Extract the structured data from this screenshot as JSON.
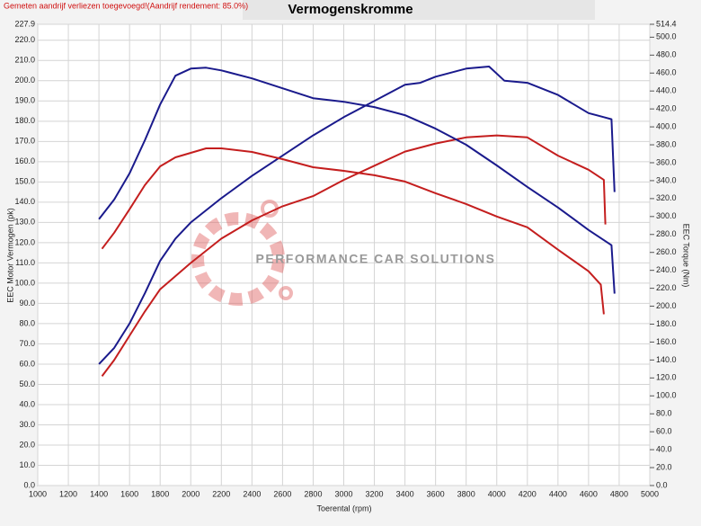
{
  "chart_data": {
    "type": "line",
    "title": "Vermogenskromme",
    "note": "Gemeten aandrijf verliezen toegevoegd!(Aandrijf rendement: 85.0%)",
    "watermark": "PERFORMANCE CAR SOLUTIONS",
    "x_label": "Toerental (rpm)",
    "y_label": "EEC Motor Vermogen (pk)",
    "y2_label": "EEC Torque (Nm)",
    "grid": true,
    "xlim": [
      1000,
      5000
    ],
    "xticks": [
      1000,
      1200,
      1400,
      1600,
      1800,
      2000,
      2200,
      2400,
      2600,
      2800,
      3000,
      3200,
      3400,
      3600,
      3800,
      4000,
      4200,
      4400,
      4600,
      4800,
      5000
    ],
    "ylim": [
      0,
      227.9
    ],
    "yticks": [
      {
        "value": 0,
        "label": "0.0"
      },
      {
        "value": 10,
        "label": "10.0"
      },
      {
        "value": 20,
        "label": "20.0"
      },
      {
        "value": 30,
        "label": "30.0"
      },
      {
        "value": 40,
        "label": "40.0"
      },
      {
        "value": 50,
        "label": "50.0"
      },
      {
        "value": 60,
        "label": "60.0"
      },
      {
        "value": 70,
        "label": "70.0"
      },
      {
        "value": 80,
        "label": "80.0"
      },
      {
        "value": 90,
        "label": "90.0"
      },
      {
        "value": 100,
        "label": "100.0"
      },
      {
        "value": 110,
        "label": "110.0"
      },
      {
        "value": 120,
        "label": "120.0"
      },
      {
        "value": 130,
        "label": "130.0"
      },
      {
        "value": 140,
        "label": "140.0"
      },
      {
        "value": 150,
        "label": "150.0"
      },
      {
        "value": 160,
        "label": "160.0"
      },
      {
        "value": 170,
        "label": "170.0"
      },
      {
        "value": 180,
        "label": "180.0"
      },
      {
        "value": 190,
        "label": "190.0"
      },
      {
        "value": 200,
        "label": "200.0"
      },
      {
        "value": 210,
        "label": "210.0"
      },
      {
        "value": 220,
        "label": "220.0"
      },
      227.9
    ],
    "y2lim": [
      0,
      514.4
    ],
    "y2ticks": [
      {
        "value": 0,
        "label": "0.0"
      },
      {
        "value": 20,
        "label": "20.0"
      },
      {
        "value": 40,
        "label": "40.0"
      },
      {
        "value": 60,
        "label": "60.0"
      },
      {
        "value": 80,
        "label": "80.0"
      },
      {
        "value": 100,
        "label": "100.0"
      },
      {
        "value": 120,
        "label": "120.0"
      },
      {
        "value": 140,
        "label": "140.0"
      },
      {
        "value": 160,
        "label": "160.0"
      },
      {
        "value": 180,
        "label": "180.0"
      },
      {
        "value": 200,
        "label": "200.0"
      },
      {
        "value": 220,
        "label": "220.0"
      },
      {
        "value": 240,
        "label": "240.0"
      },
      {
        "value": 260,
        "label": "260.0"
      },
      {
        "value": 280,
        "label": "280.0"
      },
      {
        "value": 300,
        "label": "300.0"
      },
      {
        "value": 320,
        "label": "320.0"
      },
      {
        "value": 340,
        "label": "340.0"
      },
      {
        "value": 360,
        "label": "360.0"
      },
      {
        "value": 380,
        "label": "380.0"
      },
      {
        "value": 400,
        "label": "400.0"
      },
      {
        "value": 420,
        "label": "420.0"
      },
      {
        "value": 440,
        "label": "440.0"
      },
      {
        "value": 460,
        "label": "460.0"
      },
      {
        "value": 480,
        "label": "480.0"
      },
      {
        "value": 500,
        "label": "500.0"
      },
      514.4
    ],
    "series": [
      {
        "color": "#1a1a8c",
        "x": [
          1400,
          1500,
          1600,
          1700,
          1800,
          1900,
          2000,
          2200,
          2400,
          2600,
          2800,
          3000,
          3200,
          3400,
          3500,
          3600,
          3800,
          3950,
          4050,
          4200,
          4400,
          4600,
          4700,
          4750,
          4770
        ],
        "values": [
          60,
          68,
          80,
          95,
          111,
          122,
          130,
          142,
          153,
          163,
          173,
          182,
          190,
          198,
          199,
          202,
          206,
          207,
          200,
          199,
          193,
          184,
          182,
          181,
          145
        ]
      },
      {
        "color": "#c41e1e",
        "x": [
          1420,
          1500,
          1600,
          1700,
          1800,
          2000,
          2200,
          2400,
          2600,
          2800,
          3000,
          3200,
          3400,
          3600,
          3800,
          4000,
          4200,
          4400,
          4600,
          4700,
          4710
        ],
        "values": [
          54,
          62,
          74,
          86,
          97,
          110,
          122,
          131,
          138,
          143,
          151,
          158,
          165,
          169,
          172,
          173,
          172,
          163,
          156,
          151,
          129
        ]
      },
      {
        "color": "#1a1a8c",
        "axis": "y2",
        "x": [
          1400,
          1500,
          1600,
          1700,
          1800,
          1900,
          2000,
          2100,
          2200,
          2400,
          2600,
          2800,
          3000,
          3200,
          3400,
          3600,
          3800,
          4000,
          4200,
          4400,
          4600,
          4750,
          4770
        ],
        "values": [
          297,
          319,
          348,
          385,
          425,
          457,
          465,
          466,
          463,
          454,
          443,
          432,
          428,
          422,
          413,
          398,
          380,
          357,
          333,
          310,
          285,
          268,
          214
        ]
      },
      {
        "color": "#c41e1e",
        "axis": "y2",
        "x": [
          1420,
          1500,
          1600,
          1700,
          1800,
          1900,
          2000,
          2100,
          2200,
          2400,
          2600,
          2800,
          3000,
          3200,
          3400,
          3600,
          3800,
          4000,
          4200,
          4400,
          4600,
          4680,
          4700
        ],
        "values": [
          264,
          282,
          308,
          335,
          356,
          366,
          371,
          376,
          376,
          372,
          364,
          355,
          351,
          346,
          339,
          326,
          314,
          300,
          288,
          263,
          239,
          224,
          191
        ]
      }
    ]
  }
}
